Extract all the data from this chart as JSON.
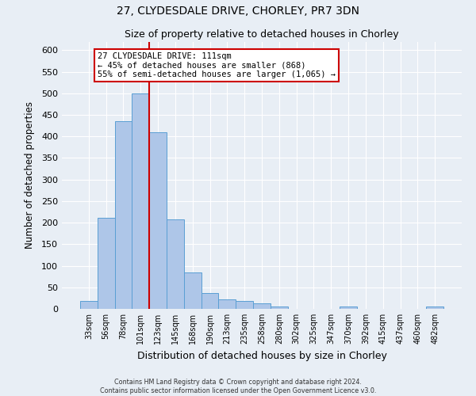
{
  "title": "27, CLYDESDALE DRIVE, CHORLEY, PR7 3DN",
  "subtitle": "Size of property relative to detached houses in Chorley",
  "xlabel": "Distribution of detached houses by size in Chorley",
  "ylabel": "Number of detached properties",
  "bar_labels": [
    "33sqm",
    "56sqm",
    "78sqm",
    "101sqm",
    "123sqm",
    "145sqm",
    "168sqm",
    "190sqm",
    "213sqm",
    "235sqm",
    "258sqm",
    "280sqm",
    "302sqm",
    "325sqm",
    "347sqm",
    "370sqm",
    "392sqm",
    "415sqm",
    "437sqm",
    "460sqm",
    "482sqm"
  ],
  "bar_values": [
    18,
    212,
    435,
    500,
    410,
    208,
    84,
    37,
    22,
    18,
    13,
    6,
    0,
    0,
    0,
    5,
    0,
    0,
    0,
    0,
    5
  ],
  "bar_color": "#aec6e8",
  "bar_edge_color": "#5a9fd4",
  "ylim": [
    0,
    620
  ],
  "yticks": [
    0,
    50,
    100,
    150,
    200,
    250,
    300,
    350,
    400,
    450,
    500,
    550,
    600
  ],
  "vline_color": "#cc0000",
  "annotation_title": "27 CLYDESDALE DRIVE: 111sqm",
  "annotation_line1": "← 45% of detached houses are smaller (868)",
  "annotation_line2": "55% of semi-detached houses are larger (1,065) →",
  "annotation_box_color": "#ffffff",
  "annotation_box_edge": "#cc0000",
  "footer1": "Contains HM Land Registry data © Crown copyright and database right 2024.",
  "footer2": "Contains public sector information licensed under the Open Government Licence v3.0.",
  "background_color": "#e8eef5",
  "plot_bg_color": "#e8eef5",
  "grid_color": "#ffffff"
}
